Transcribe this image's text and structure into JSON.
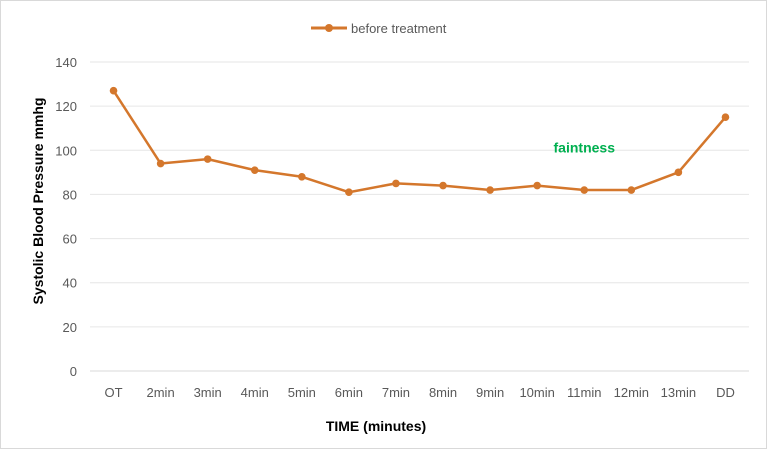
{
  "chart_data": {
    "type": "line",
    "categories": [
      "OT",
      "2min",
      "3min",
      "4min",
      "5min",
      "6min",
      "7min",
      "8min",
      "9min",
      "10min",
      "11min",
      "12min",
      "13min",
      "DD"
    ],
    "series": [
      {
        "name": "before treatment",
        "color": "#d4772c",
        "values": [
          127,
          94,
          96,
          91,
          88,
          81,
          85,
          84,
          82,
          84,
          82,
          82,
          90,
          115
        ]
      }
    ],
    "xlabel": "TIME (minutes)",
    "ylabel": "Systolic Blood Pressure mmhg",
    "ylim": [
      0,
      140
    ],
    "yticks": [
      0,
      20,
      40,
      60,
      80,
      100,
      120,
      140
    ],
    "grid": true,
    "legend_position": "top-center",
    "annotations": [
      {
        "text": "faintness",
        "category": "11min",
        "value": 98,
        "color": "#00b050"
      }
    ]
  }
}
